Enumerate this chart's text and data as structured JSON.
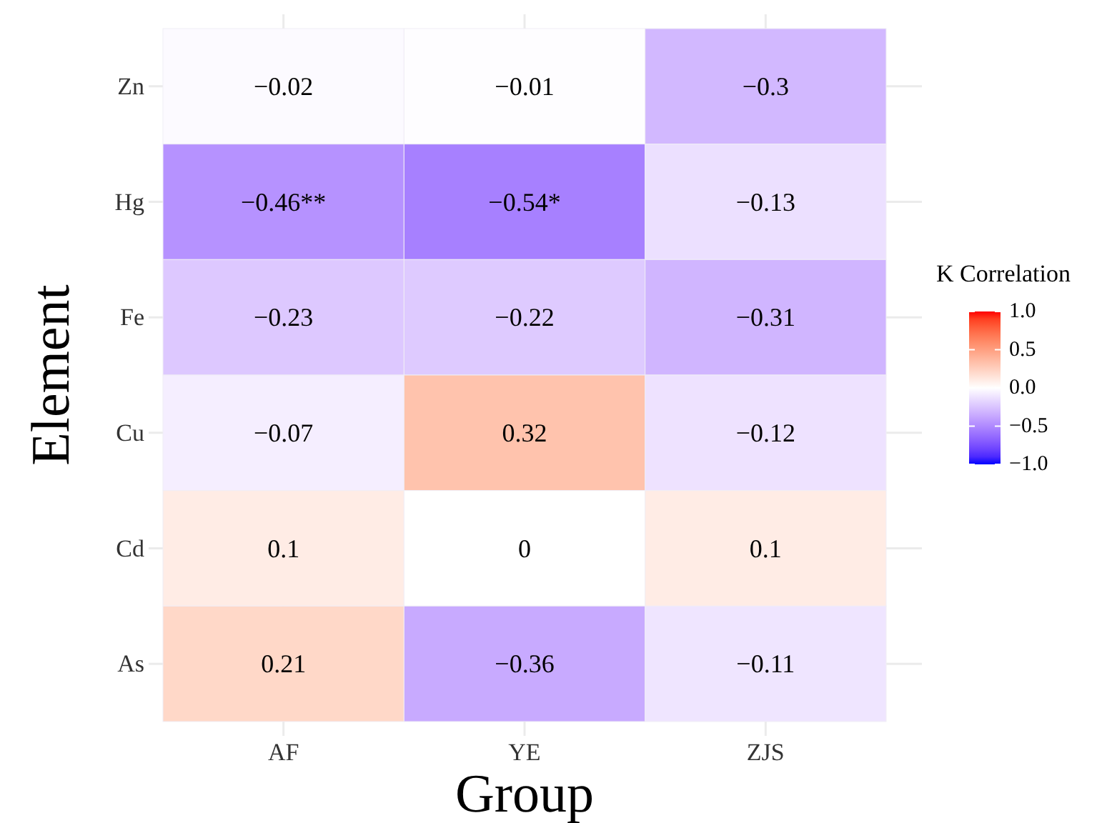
{
  "chart_data": {
    "type": "heatmap",
    "xlabel": "Group",
    "ylabel": "Element",
    "legend_title": "K Correlation",
    "categories": [
      "AF",
      "YE",
      "ZJS"
    ],
    "y_categories": [
      "Zn",
      "Hg",
      "Fe",
      "Cu",
      "Cd",
      "As"
    ],
    "cells": [
      [
        -0.02,
        -0.01,
        -0.3
      ],
      [
        -0.46,
        -0.54,
        -0.13
      ],
      [
        -0.23,
        -0.22,
        -0.31
      ],
      [
        -0.07,
        0.32,
        -0.12
      ],
      [
        0.1,
        0,
        0.1
      ],
      [
        0.21,
        -0.36,
        -0.11
      ]
    ],
    "cell_labels": [
      [
        "−0.02",
        "−0.01",
        "−0.3"
      ],
      [
        "−0.46**",
        "−0.54*",
        "−0.13"
      ],
      [
        "−0.23",
        "−0.22",
        "−0.31"
      ],
      [
        "−0.07",
        "0.32",
        "−0.12"
      ],
      [
        "0.1",
        "0",
        "0.1"
      ],
      [
        "0.21",
        "−0.36",
        "−0.11"
      ]
    ],
    "clim": [
      -1,
      1
    ],
    "cticks": [
      {
        "value": -1,
        "label": "−1.0"
      },
      {
        "value": -0.5,
        "label": "−0.5"
      },
      {
        "value": 0,
        "label": "0.0"
      },
      {
        "value": 0.5,
        "label": "0.5"
      },
      {
        "value": 1,
        "label": "1.0"
      }
    ],
    "grid": true
  }
}
